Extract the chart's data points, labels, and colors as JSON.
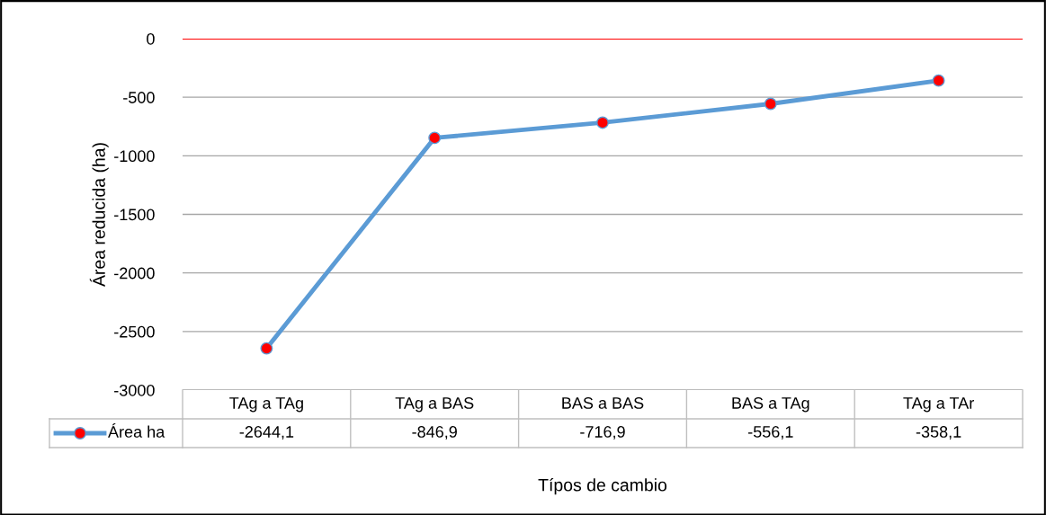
{
  "chart_data": {
    "type": "line",
    "xlabel": "Típos de cambio",
    "ylabel": "Área reducida (ha)",
    "categories": [
      "TAg a TAg",
      "TAg a BAS",
      "BAS a BAS",
      "BAS a TAg",
      "TAg a TAr"
    ],
    "series": [
      {
        "name": "Área ha",
        "color": "#5b9bd5",
        "values": [
          -2644.1,
          -846.9,
          -716.9,
          -556.1,
          -358.1
        ],
        "value_labels": [
          "-2644,1",
          "-846,9",
          "-716,9",
          "-556,1",
          "-358,1"
        ]
      }
    ],
    "ylim": [
      -3000,
      0
    ],
    "yticks": [
      -3000,
      -2500,
      -2000,
      -1500,
      -1000,
      -500,
      0
    ],
    "ref_lines": [
      {
        "axis": "y",
        "value": 0,
        "color": "#ff0000"
      }
    ],
    "grid": "y",
    "marker": "circle",
    "line_style": "solid"
  }
}
